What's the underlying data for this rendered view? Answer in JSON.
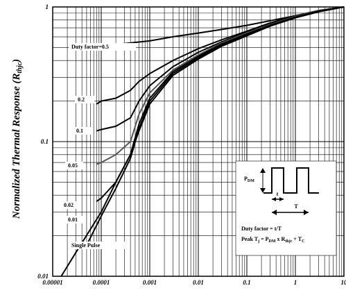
{
  "chart_data": {
    "type": "line",
    "title": "",
    "xlabel": "",
    "ylabel": "Normalized Thermal Response (Rthjc)",
    "ylabel_main": "Normalized Thermal Response (R",
    "ylabel_sub": "thjc",
    "ylabel_close": ")",
    "x_scale": "log",
    "y_scale": "log",
    "xlim": [
      1e-05,
      10
    ],
    "ylim": [
      0.01,
      1
    ],
    "grid": true,
    "x_ticks": [
      "0.00001",
      "0.0001",
      "0.001",
      "0.01",
      "0.1",
      "1",
      "10"
    ],
    "y_ticks": [
      "0.01",
      "0.1",
      "1"
    ],
    "series": [
      {
        "name": "Duty factor=0.5",
        "label": "Duty factor=0.5",
        "color": "#000000",
        "x": [
          6e-05,
          0.0001,
          0.0003,
          0.001,
          0.003,
          0.01,
          0.03,
          0.1,
          0.3,
          1,
          3,
          10
        ],
        "y": [
          0.515,
          0.52,
          0.535,
          0.56,
          0.6,
          0.64,
          0.68,
          0.73,
          0.79,
          0.86,
          0.94,
          1.0
        ]
      },
      {
        "name": "0.2",
        "label": "0.2",
        "color": "#000000",
        "x": [
          8e-05,
          0.0001,
          0.0002,
          0.0004,
          0.0006,
          0.001,
          0.003,
          0.01,
          0.03,
          0.1,
          0.3,
          1,
          3,
          10
        ],
        "y": [
          0.19,
          0.2,
          0.21,
          0.24,
          0.28,
          0.32,
          0.4,
          0.49,
          0.57,
          0.66,
          0.76,
          0.86,
          0.94,
          1.0
        ]
      },
      {
        "name": "0.1",
        "label": "0.1",
        "color": "#000000",
        "x": [
          8e-05,
          0.0001,
          0.0002,
          0.0004,
          0.0006,
          0.001,
          0.003,
          0.01,
          0.03,
          0.1,
          0.3,
          1,
          3,
          10
        ],
        "y": [
          0.12,
          0.123,
          0.13,
          0.15,
          0.2,
          0.26,
          0.36,
          0.46,
          0.55,
          0.65,
          0.75,
          0.85,
          0.94,
          1.0
        ]
      },
      {
        "name": "0.05",
        "label": "0.05",
        "color": "#555555",
        "x": [
          8e-05,
          0.0001,
          0.0002,
          0.0004,
          0.0006,
          0.001,
          0.003,
          0.01,
          0.03,
          0.1,
          0.3,
          1,
          3,
          10
        ],
        "y": [
          0.068,
          0.07,
          0.08,
          0.1,
          0.16,
          0.23,
          0.34,
          0.44,
          0.54,
          0.64,
          0.74,
          0.85,
          0.94,
          1.0
        ]
      },
      {
        "name": "0.02",
        "label": "0.02",
        "color": "#000000",
        "x": [
          8e-05,
          0.0001,
          0.0002,
          0.0004,
          0.0006,
          0.001,
          0.003,
          0.01,
          0.03,
          0.1,
          0.3,
          1,
          3,
          10
        ],
        "y": [
          0.036,
          0.038,
          0.05,
          0.08,
          0.135,
          0.21,
          0.33,
          0.43,
          0.53,
          0.63,
          0.73,
          0.84,
          0.93,
          1.0
        ]
      },
      {
        "name": "0.01",
        "label": "0.01",
        "color": "#000000",
        "x": [
          5e-05,
          0.0001,
          0.0002,
          0.0004,
          0.0006,
          0.001,
          0.003,
          0.01,
          0.03,
          0.1,
          0.3,
          1,
          3,
          10
        ],
        "y": [
          0.017,
          0.028,
          0.045,
          0.075,
          0.125,
          0.2,
          0.32,
          0.42,
          0.52,
          0.62,
          0.73,
          0.84,
          0.93,
          1.0
        ]
      },
      {
        "name": "Single Pulse",
        "label": "Single Pulse",
        "color": "#000000",
        "x": [
          1.5e-05,
          3e-05,
          0.0001,
          0.0002,
          0.0004,
          0.0006,
          0.001,
          0.003,
          0.01,
          0.03,
          0.1,
          0.3,
          1,
          3,
          10
        ],
        "y": [
          0.01,
          0.015,
          0.03,
          0.05,
          0.08,
          0.12,
          0.19,
          0.31,
          0.41,
          0.51,
          0.61,
          0.72,
          0.83,
          0.92,
          1.0
        ]
      }
    ],
    "inset": {
      "pdm": "P",
      "pdm_sub": "DM",
      "t": "t",
      "T": "T",
      "duty_line": "Duty factor = t/T",
      "peak_a": "Peak T",
      "peak_a_sub": "j",
      "peak_b": " = P",
      "peak_b_sub": "DM",
      "peak_c": " x R",
      "peak_c_sub": "thjc",
      "peak_d": " + T",
      "peak_d_sub": "C"
    }
  }
}
